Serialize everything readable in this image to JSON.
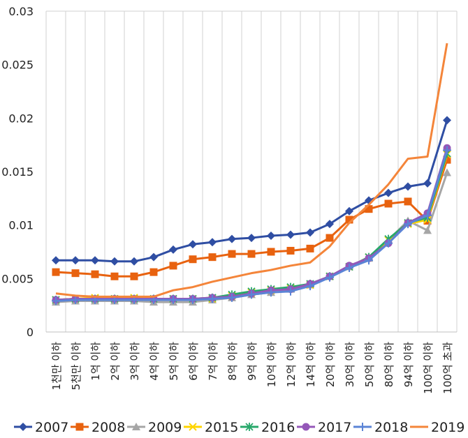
{
  "chart_data": {
    "type": "line",
    "title": "",
    "xlabel": "",
    "ylabel": "",
    "ylim": [
      0,
      0.03
    ],
    "yticks": [
      0,
      0.005,
      0.01,
      0.015,
      0.02,
      0.025,
      0.03
    ],
    "ytick_labels": [
      "0",
      "0.005",
      "0.01",
      "0.015",
      "0.02",
      "0.025",
      "0.03"
    ],
    "grid": "vertical",
    "legend_position": "bottom",
    "categories": [
      "1천만 이하",
      "5천만 이하",
      "1억 이하",
      "2억 이하",
      "3억 이하",
      "4억 이하",
      "5억 이하",
      "6억 이하",
      "7억 이하",
      "8억 이하",
      "9억 이하",
      "10억 이하",
      "12억 이하",
      "14억 이하",
      "20억 이하",
      "30억 이하",
      "50억 이하",
      "80억 이하",
      "94억 이하",
      "100억 이하",
      "100억 초과"
    ],
    "series": [
      {
        "name": "2007",
        "color": "#2f4ea3",
        "marker": "diamond",
        "values": [
          0.0067,
          0.0067,
          0.0067,
          0.0066,
          0.0066,
          0.007,
          0.0077,
          0.0082,
          0.0084,
          0.0087,
          0.0088,
          0.009,
          0.0091,
          0.0093,
          0.0101,
          0.0113,
          0.0123,
          0.013,
          0.0136,
          0.0139,
          0.0198
        ]
      },
      {
        "name": "2008",
        "color": "#e8620f",
        "marker": "square",
        "values": [
          0.0056,
          0.0055,
          0.0054,
          0.0052,
          0.0052,
          0.0056,
          0.0062,
          0.0068,
          0.007,
          0.0073,
          0.0073,
          0.0075,
          0.0076,
          0.0078,
          0.0088,
          0.0105,
          0.0115,
          0.012,
          0.0122,
          0.0104,
          0.0161
        ]
      },
      {
        "name": "2009",
        "color": "#a6a6a6",
        "marker": "triangle",
        "values": [
          0.0028,
          0.0029,
          0.0029,
          0.0029,
          0.0029,
          0.0028,
          0.0028,
          0.0028,
          0.003,
          0.0032,
          0.0035,
          0.0037,
          0.004,
          0.0044,
          0.0052,
          0.0061,
          0.0069,
          0.0086,
          0.0104,
          0.0095,
          0.0149
        ]
      },
      {
        "name": "2015",
        "color": "#ffd500",
        "marker": "x",
        "values": [
          0.003,
          0.0031,
          0.0032,
          0.0031,
          0.0032,
          0.0031,
          0.0031,
          0.0031,
          0.0031,
          0.0034,
          0.0037,
          0.0039,
          0.0041,
          0.0044,
          0.0052,
          0.0061,
          0.007,
          0.0086,
          0.0101,
          0.0105,
          0.0166
        ]
      },
      {
        "name": "2016",
        "color": "#28a86b",
        "marker": "star",
        "values": [
          0.003,
          0.0031,
          0.0031,
          0.0031,
          0.0031,
          0.0031,
          0.0031,
          0.0031,
          0.0032,
          0.0035,
          0.0038,
          0.004,
          0.0042,
          0.0045,
          0.0052,
          0.0061,
          0.007,
          0.0087,
          0.0102,
          0.0107,
          0.0167
        ]
      },
      {
        "name": "2017",
        "color": "#9457b8",
        "marker": "circle",
        "values": [
          0.003,
          0.0031,
          0.0031,
          0.0031,
          0.0031,
          0.0031,
          0.0031,
          0.0031,
          0.0032,
          0.0033,
          0.0036,
          0.0039,
          0.004,
          0.0045,
          0.0052,
          0.0062,
          0.0069,
          0.0083,
          0.0102,
          0.0111,
          0.0172
        ]
      },
      {
        "name": "2018",
        "color": "#5b84d6",
        "marker": "plus",
        "values": [
          0.0029,
          0.003,
          0.003,
          0.003,
          0.003,
          0.003,
          0.003,
          0.003,
          0.0031,
          0.0032,
          0.0035,
          0.0037,
          0.0038,
          0.0043,
          0.0051,
          0.006,
          0.0067,
          0.0083,
          0.0101,
          0.0109,
          0.017
        ]
      },
      {
        "name": "2019",
        "color": "#f4853a",
        "marker": "none",
        "values": [
          0.0036,
          0.0034,
          0.0033,
          0.0033,
          0.0033,
          0.0033,
          0.0039,
          0.0042,
          0.0047,
          0.0051,
          0.0055,
          0.0058,
          0.0062,
          0.0065,
          0.008,
          0.0102,
          0.0119,
          0.0138,
          0.0162,
          0.0164,
          0.027
        ]
      }
    ]
  }
}
